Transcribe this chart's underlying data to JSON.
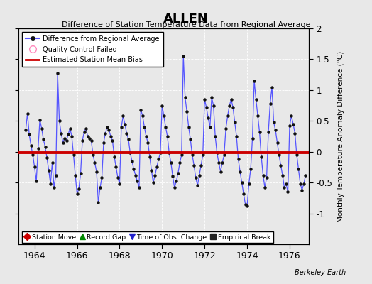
{
  "title": "ALLEN",
  "subtitle": "Difference of Station Temperature Data from Regional Average",
  "ylabel": "Monthly Temperature Anomaly Difference (°C)",
  "xlabel_years": [
    1964,
    1966,
    1968,
    1970,
    1972,
    1974,
    1976
  ],
  "ylim": [
    -1.5,
    2.0
  ],
  "yticks": [
    -1.0,
    -0.5,
    0.0,
    0.5,
    1.0,
    1.5,
    2.0
  ],
  "bias_value": -0.02,
  "background_color": "#e8e8e8",
  "line_color": "#5555ff",
  "dot_color": "#111111",
  "bias_color": "#cc0000",
  "watermark": "Berkeley Earth",
  "data": [
    [
      1963.583,
      0.35
    ],
    [
      1963.667,
      0.62
    ],
    [
      1963.75,
      0.28
    ],
    [
      1963.833,
      0.1
    ],
    [
      1963.917,
      -0.05
    ],
    [
      1964.0,
      -0.25
    ],
    [
      1964.083,
      -0.48
    ],
    [
      1964.167,
      0.05
    ],
    [
      1964.25,
      0.52
    ],
    [
      1964.333,
      0.38
    ],
    [
      1964.417,
      0.2
    ],
    [
      1964.5,
      0.08
    ],
    [
      1964.583,
      -0.1
    ],
    [
      1964.667,
      -0.3
    ],
    [
      1964.75,
      -0.52
    ],
    [
      1964.833,
      -0.18
    ],
    [
      1964.917,
      -0.58
    ],
    [
      1965.0,
      -0.38
    ],
    [
      1965.083,
      1.28
    ],
    [
      1965.167,
      0.5
    ],
    [
      1965.25,
      0.3
    ],
    [
      1965.333,
      0.15
    ],
    [
      1965.417,
      0.22
    ],
    [
      1965.5,
      0.18
    ],
    [
      1965.583,
      0.28
    ],
    [
      1965.667,
      0.38
    ],
    [
      1965.75,
      0.25
    ],
    [
      1965.833,
      -0.05
    ],
    [
      1965.917,
      -0.38
    ],
    [
      1966.0,
      -0.68
    ],
    [
      1966.083,
      -0.6
    ],
    [
      1966.167,
      -0.35
    ],
    [
      1966.25,
      0.18
    ],
    [
      1966.333,
      0.32
    ],
    [
      1966.417,
      0.38
    ],
    [
      1966.5,
      0.25
    ],
    [
      1966.583,
      0.22
    ],
    [
      1966.667,
      0.18
    ],
    [
      1966.75,
      -0.05
    ],
    [
      1966.833,
      -0.18
    ],
    [
      1966.917,
      -0.32
    ],
    [
      1967.0,
      -0.82
    ],
    [
      1967.083,
      -0.58
    ],
    [
      1967.167,
      -0.42
    ],
    [
      1967.25,
      0.15
    ],
    [
      1967.333,
      0.3
    ],
    [
      1967.417,
      0.4
    ],
    [
      1967.5,
      0.35
    ],
    [
      1967.583,
      0.25
    ],
    [
      1967.667,
      0.18
    ],
    [
      1967.75,
      -0.08
    ],
    [
      1967.833,
      -0.25
    ],
    [
      1967.917,
      -0.42
    ],
    [
      1968.0,
      -0.52
    ],
    [
      1968.083,
      0.4
    ],
    [
      1968.167,
      0.58
    ],
    [
      1968.25,
      0.45
    ],
    [
      1968.333,
      0.3
    ],
    [
      1968.417,
      0.2
    ],
    [
      1968.5,
      -0.02
    ],
    [
      1968.583,
      -0.15
    ],
    [
      1968.667,
      -0.28
    ],
    [
      1968.75,
      -0.38
    ],
    [
      1968.833,
      -0.48
    ],
    [
      1968.917,
      -0.58
    ],
    [
      1969.0,
      0.68
    ],
    [
      1969.083,
      0.58
    ],
    [
      1969.167,
      0.4
    ],
    [
      1969.25,
      0.25
    ],
    [
      1969.333,
      0.15
    ],
    [
      1969.417,
      -0.08
    ],
    [
      1969.5,
      -0.3
    ],
    [
      1969.583,
      -0.5
    ],
    [
      1969.667,
      -0.38
    ],
    [
      1969.75,
      -0.25
    ],
    [
      1969.833,
      -0.12
    ],
    [
      1969.917,
      -0.02
    ],
    [
      1970.0,
      0.75
    ],
    [
      1970.083,
      0.58
    ],
    [
      1970.167,
      0.4
    ],
    [
      1970.25,
      0.25
    ],
    [
      1970.333,
      -0.02
    ],
    [
      1970.417,
      -0.18
    ],
    [
      1970.5,
      -0.4
    ],
    [
      1970.583,
      -0.58
    ],
    [
      1970.667,
      -0.48
    ],
    [
      1970.75,
      -0.35
    ],
    [
      1970.833,
      -0.18
    ],
    [
      1970.917,
      -0.05
    ],
    [
      1971.0,
      1.55
    ],
    [
      1971.083,
      0.88
    ],
    [
      1971.167,
      0.65
    ],
    [
      1971.25,
      0.4
    ],
    [
      1971.333,
      0.2
    ],
    [
      1971.417,
      -0.05
    ],
    [
      1971.5,
      -0.22
    ],
    [
      1971.583,
      -0.42
    ],
    [
      1971.667,
      -0.55
    ],
    [
      1971.75,
      -0.38
    ],
    [
      1971.833,
      -0.22
    ],
    [
      1971.917,
      -0.05
    ],
    [
      1972.0,
      0.85
    ],
    [
      1972.083,
      0.72
    ],
    [
      1972.167,
      0.55
    ],
    [
      1972.25,
      0.4
    ],
    [
      1972.333,
      0.88
    ],
    [
      1972.417,
      0.75
    ],
    [
      1972.5,
      0.25
    ],
    [
      1972.583,
      -0.02
    ],
    [
      1972.667,
      -0.18
    ],
    [
      1972.75,
      -0.32
    ],
    [
      1972.833,
      -0.18
    ],
    [
      1972.917,
      -0.05
    ],
    [
      1973.0,
      0.38
    ],
    [
      1973.083,
      0.58
    ],
    [
      1973.167,
      0.75
    ],
    [
      1973.25,
      0.85
    ],
    [
      1973.333,
      0.72
    ],
    [
      1973.417,
      0.48
    ],
    [
      1973.5,
      0.25
    ],
    [
      1973.583,
      -0.12
    ],
    [
      1973.667,
      -0.32
    ],
    [
      1973.75,
      -0.5
    ],
    [
      1973.833,
      -0.68
    ],
    [
      1973.917,
      -0.85
    ],
    [
      1974.0,
      -0.88
    ],
    [
      1974.083,
      -0.52
    ],
    [
      1974.167,
      -0.28
    ],
    [
      1974.25,
      0.22
    ],
    [
      1974.333,
      1.15
    ],
    [
      1974.417,
      0.85
    ],
    [
      1974.5,
      0.58
    ],
    [
      1974.583,
      0.32
    ],
    [
      1974.667,
      -0.08
    ],
    [
      1974.75,
      -0.38
    ],
    [
      1974.833,
      -0.58
    ],
    [
      1974.917,
      -0.42
    ],
    [
      1975.0,
      0.32
    ],
    [
      1975.083,
      0.78
    ],
    [
      1975.167,
      1.05
    ],
    [
      1975.25,
      0.48
    ],
    [
      1975.333,
      0.35
    ],
    [
      1975.417,
      0.15
    ],
    [
      1975.5,
      -0.05
    ],
    [
      1975.583,
      -0.22
    ],
    [
      1975.667,
      -0.38
    ],
    [
      1975.75,
      -0.58
    ],
    [
      1975.833,
      -0.52
    ],
    [
      1975.917,
      -0.65
    ],
    [
      1976.0,
      0.42
    ],
    [
      1976.083,
      0.58
    ],
    [
      1976.167,
      0.45
    ],
    [
      1976.25,
      0.3
    ],
    [
      1976.333,
      -0.05
    ],
    [
      1976.417,
      -0.28
    ],
    [
      1976.5,
      -0.52
    ],
    [
      1976.583,
      -0.62
    ],
    [
      1976.667,
      -0.52
    ],
    [
      1976.75,
      -0.38
    ]
  ]
}
